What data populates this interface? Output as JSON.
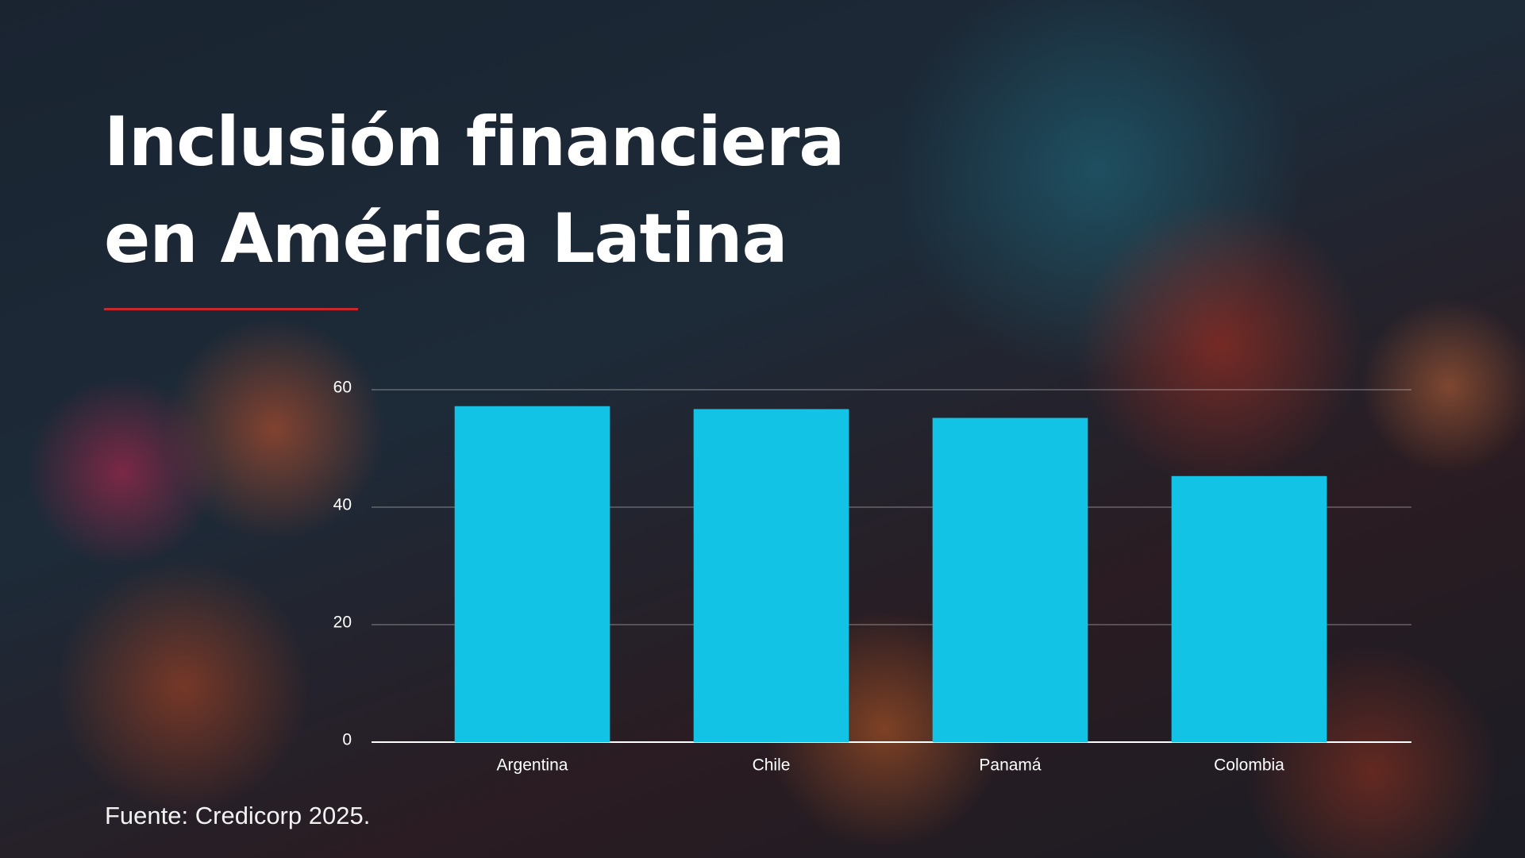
{
  "chart_data": {
    "type": "bar",
    "title": "Inclusión financiera en América Latina",
    "categories": [
      "Argentina",
      "Chile",
      "Panamá",
      "Colombia"
    ],
    "values": [
      57.2,
      56.7,
      55.2,
      45.3
    ],
    "color": "#12c3e6",
    "ylim": [
      0,
      60
    ],
    "yticks": [
      0,
      20,
      40,
      60
    ],
    "grid": true,
    "source": "Fuente: Credicorp 2025."
  }
}
